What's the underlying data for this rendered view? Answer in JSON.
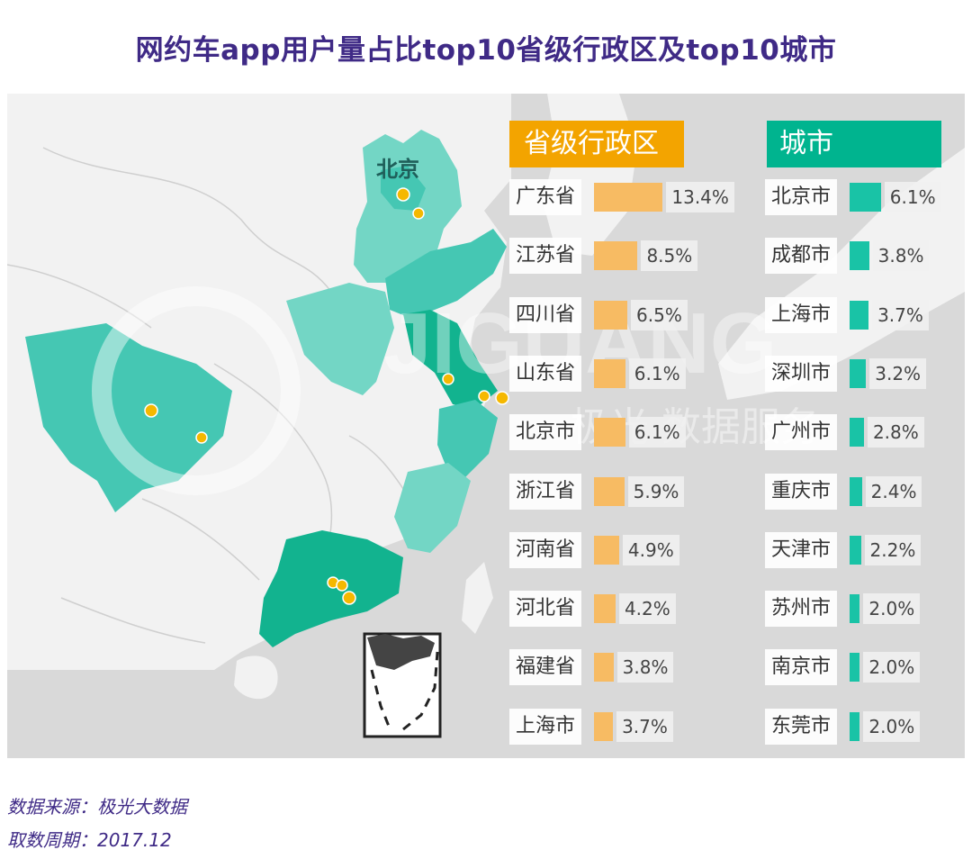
{
  "title": "网约车app用户量占比top10省级行政区及top10城市",
  "map": {
    "beijing_label": "北京",
    "watermark_latin": "JIGUANG",
    "watermark_cn": "极光 数据服务",
    "colors": {
      "sea": "#d9d9d9",
      "land": "#f2f2f2",
      "teal_light": "#73d6c5",
      "teal_mid": "#45c7b3",
      "teal_dark": "#12b38f",
      "dot": "#f5b800"
    }
  },
  "chart_data": [
    {
      "type": "bar",
      "title": "省级行政区",
      "categories": [
        "广东省",
        "江苏省",
        "四川省",
        "山东省",
        "北京市",
        "浙江省",
        "河南省",
        "河北省",
        "福建省",
        "上海市"
      ],
      "values": [
        13.4,
        8.5,
        6.5,
        6.1,
        6.1,
        5.9,
        4.9,
        4.2,
        3.8,
        3.7
      ],
      "labels": [
        "13.4%",
        "8.5%",
        "6.5%",
        "6.1%",
        "6.1%",
        "5.9%",
        "4.9%",
        "4.2%",
        "3.8%",
        "3.7%"
      ],
      "color": "#f7bb63"
    },
    {
      "type": "bar",
      "title": "城市",
      "categories": [
        "北京市",
        "成都市",
        "上海市",
        "深圳市",
        "广州市",
        "重庆市",
        "天津市",
        "苏州市",
        "南京市",
        "东莞市"
      ],
      "values": [
        6.1,
        3.8,
        3.7,
        3.2,
        2.8,
        2.4,
        2.2,
        2.0,
        2.0,
        2.0
      ],
      "labels": [
        "6.1%",
        "3.8%",
        "3.7%",
        "3.2%",
        "2.8%",
        "2.4%",
        "2.2%",
        "2.0%",
        "2.0%",
        "2.0%"
      ],
      "color": "#19c3a6"
    }
  ],
  "footer": {
    "source": "数据来源：极光大数据",
    "period": "取数周期：2017.12"
  }
}
